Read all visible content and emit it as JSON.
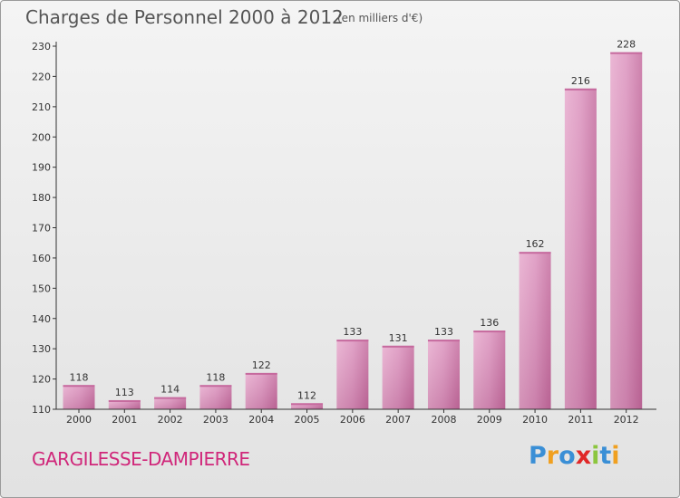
{
  "title": "Charges de Personnel 2000 à 2012",
  "unit": "(en milliers d'€)",
  "commune": "GARGILESSE-DAMPIERRE",
  "logo": {
    "letters": [
      "P",
      "r",
      "o",
      "x",
      "i",
      "t",
      "i"
    ],
    "colors": [
      "#3a8fd6",
      "#f0a020",
      "#3a8fd6",
      "#e02828",
      "#8cc63e",
      "#3a8fd6",
      "#f0a020"
    ]
  },
  "colors": {
    "bar": "#d27faf",
    "bar_light": "#e6a8cc",
    "commune": "#d0277a",
    "axis": "#333333"
  },
  "chart_data": {
    "type": "bar",
    "categories": [
      "2000",
      "2001",
      "2002",
      "2003",
      "2004",
      "2005",
      "2006",
      "2007",
      "2008",
      "2009",
      "2010",
      "2011",
      "2012"
    ],
    "values": [
      118,
      113,
      114,
      118,
      122,
      112,
      133,
      131,
      133,
      136,
      162,
      216,
      228
    ],
    "ylim": [
      110,
      230
    ],
    "yticks": [
      110,
      120,
      130,
      140,
      150,
      160,
      170,
      180,
      190,
      200,
      210,
      220,
      230
    ],
    "grid": false
  }
}
